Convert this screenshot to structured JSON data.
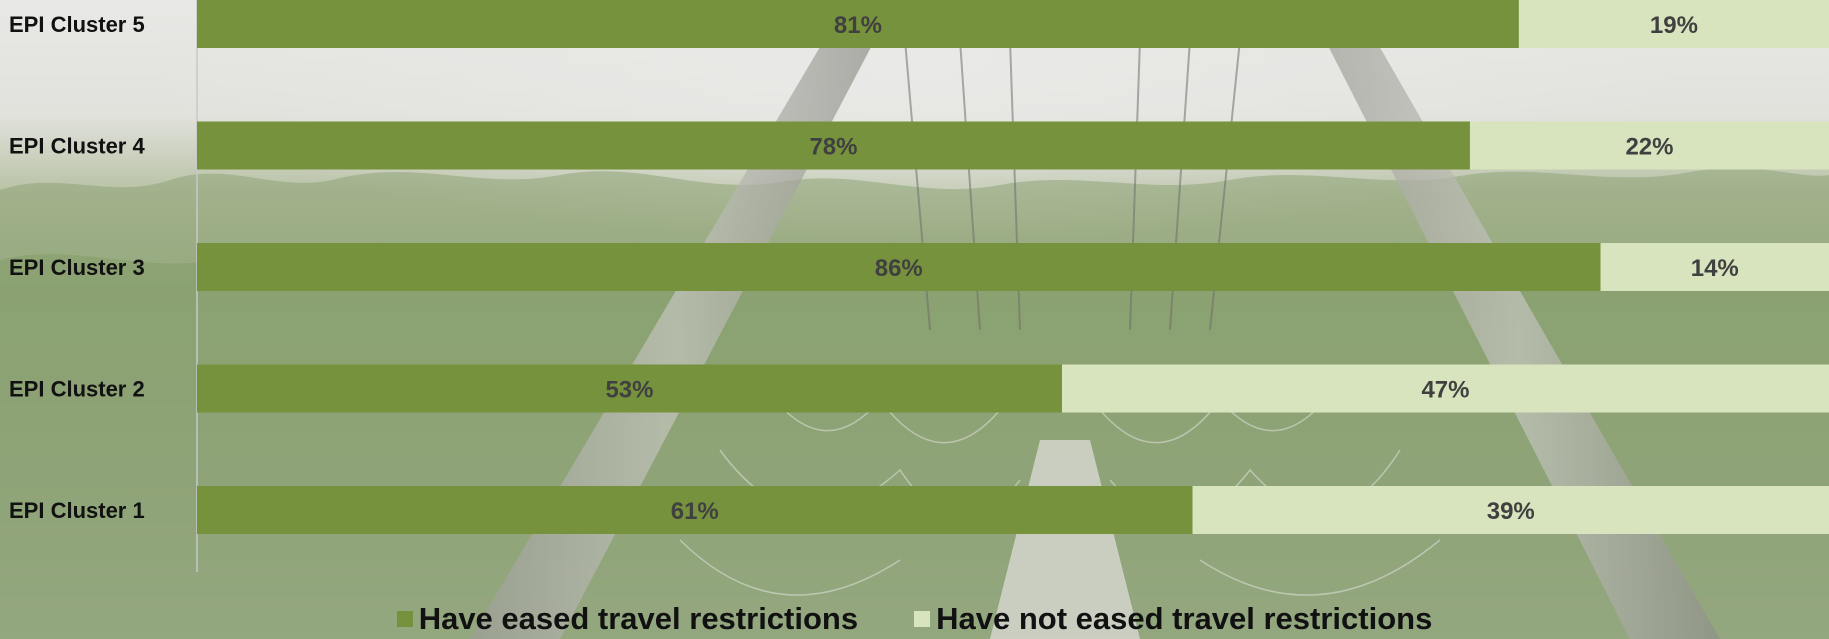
{
  "chart_data": {
    "type": "bar",
    "orientation": "horizontal",
    "stacked": true,
    "percent": true,
    "categories": [
      "EPI Cluster 5",
      "EPI Cluster 4",
      "EPI Cluster 3",
      "EPI Cluster 2",
      "EPI Cluster 1"
    ],
    "series": [
      {
        "name": "Have eased travel restrictions",
        "values": [
          81,
          78,
          86,
          53,
          61
        ],
        "labels": [
          "81%",
          "78%",
          "86%",
          "53%",
          "61%"
        ],
        "color": "#76923c"
      },
      {
        "name": "Have not eased travel restrictions",
        "values": [
          19,
          22,
          14,
          47,
          39
        ],
        "labels": [
          "19%",
          "22%",
          "14%",
          "47%",
          "39%"
        ],
        "color": "#d7e4bd"
      }
    ],
    "xlim": [
      0,
      100
    ],
    "grid": false,
    "legend_position": "bottom"
  }
}
